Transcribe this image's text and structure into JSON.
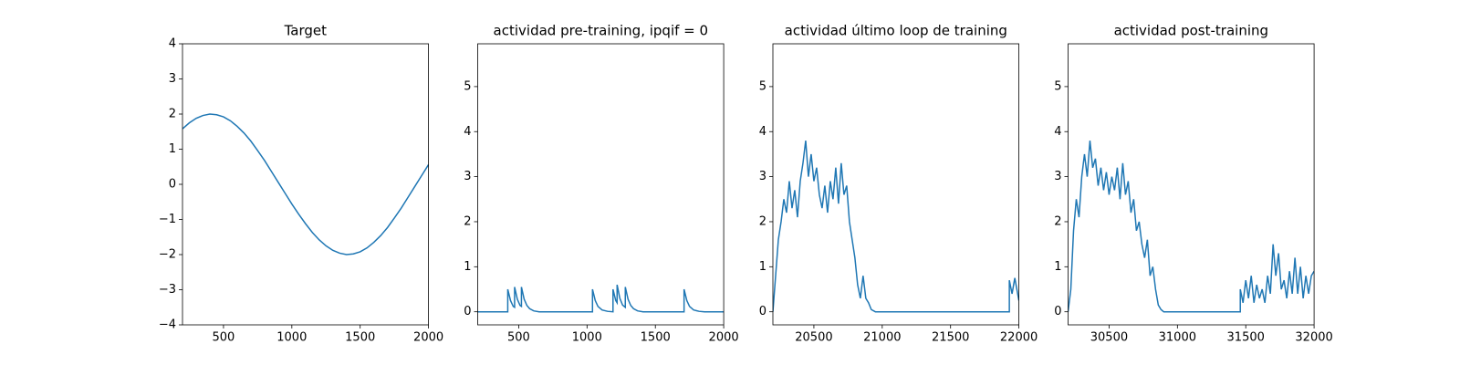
{
  "chart_data": [
    {
      "type": "line",
      "title": "Target",
      "color": "#1f77b4",
      "x": [
        200,
        250,
        300,
        350,
        400,
        450,
        500,
        550,
        600,
        650,
        700,
        750,
        800,
        850,
        900,
        950,
        1000,
        1050,
        1100,
        1150,
        1200,
        1250,
        1300,
        1350,
        1400,
        1450,
        1500,
        1550,
        1600,
        1650,
        1700,
        1750,
        1800,
        1850,
        1900,
        1950,
        2000
      ],
      "values": [
        1.58,
        1.75,
        1.88,
        1.96,
        2.0,
        1.98,
        1.92,
        1.81,
        1.65,
        1.46,
        1.23,
        0.96,
        0.68,
        0.37,
        0.06,
        -0.25,
        -0.56,
        -0.85,
        -1.12,
        -1.37,
        -1.58,
        -1.75,
        -1.88,
        -1.96,
        -2.0,
        -1.98,
        -1.92,
        -1.81,
        -1.65,
        -1.46,
        -1.23,
        -0.96,
        -0.68,
        -0.37,
        -0.06,
        0.25,
        0.56
      ],
      "xlim": [
        200,
        2000
      ],
      "xticks": [
        500,
        1000,
        1500,
        2000
      ],
      "ylim": [
        -4,
        4
      ],
      "yticks": [
        {
          "value": -4,
          "label": "−4"
        },
        {
          "value": -3,
          "label": "−3"
        },
        {
          "value": -2,
          "label": "−2"
        },
        {
          "value": -1,
          "label": "−1"
        },
        0,
        1,
        2,
        3,
        4
      ]
    },
    {
      "type": "line",
      "title": "actividad pre-training, ipqif = 0",
      "color": "#1f77b4",
      "x": [
        200,
        420,
        420,
        440,
        460,
        470,
        470,
        490,
        510,
        520,
        520,
        540,
        560,
        580,
        610,
        650,
        1040,
        1040,
        1060,
        1080,
        1110,
        1150,
        1190,
        1190,
        1210,
        1220,
        1220,
        1240,
        1260,
        1280,
        1280,
        1300,
        1320,
        1340,
        1370,
        1410,
        1710,
        1710,
        1730,
        1750,
        1780,
        1820,
        1860,
        2000
      ],
      "values": [
        0,
        0,
        0.5,
        0.25,
        0.12,
        0.1,
        0.55,
        0.28,
        0.14,
        0.12,
        0.55,
        0.28,
        0.14,
        0.07,
        0.02,
        0,
        0,
        0.5,
        0.25,
        0.12,
        0.04,
        0.01,
        0,
        0.5,
        0.25,
        0.2,
        0.6,
        0.3,
        0.15,
        0.1,
        0.55,
        0.28,
        0.14,
        0.07,
        0.02,
        0,
        0,
        0.5,
        0.25,
        0.12,
        0.04,
        0.01,
        0,
        0
      ],
      "xlim": [
        200,
        2000
      ],
      "xticks": [
        500,
        1000,
        1500,
        2000
      ],
      "ylim": [
        -0.29,
        5.95
      ],
      "yticks": [
        0,
        1,
        2,
        3,
        4,
        5
      ]
    },
    {
      "type": "line",
      "title": "actividad último loop de training",
      "color": "#1f77b4",
      "x": [
        20200,
        20220,
        20240,
        20260,
        20280,
        20300,
        20320,
        20340,
        20360,
        20380,
        20400,
        20420,
        20440,
        20460,
        20480,
        20500,
        20520,
        20540,
        20560,
        20580,
        20600,
        20620,
        20640,
        20660,
        20680,
        20700,
        20720,
        20740,
        20760,
        20780,
        20800,
        20820,
        20840,
        20860,
        20880,
        20900,
        20920,
        20950,
        21900,
        21930,
        21930,
        21950,
        21970,
        22000
      ],
      "values": [
        0,
        0.8,
        1.6,
        2.0,
        2.5,
        2.2,
        2.9,
        2.3,
        2.7,
        2.1,
        2.9,
        3.3,
        3.8,
        3.0,
        3.5,
        2.9,
        3.2,
        2.6,
        2.3,
        2.8,
        2.2,
        2.9,
        2.5,
        3.2,
        2.4,
        3.3,
        2.6,
        2.8,
        2.0,
        1.6,
        1.2,
        0.6,
        0.3,
        0.8,
        0.3,
        0.2,
        0.05,
        0,
        0,
        0,
        0.7,
        0.4,
        0.75,
        0.25
      ],
      "xlim": [
        20200,
        22000
      ],
      "xticks": [
        20500,
        21000,
        21500,
        22000
      ],
      "ylim": [
        -0.29,
        5.95
      ],
      "yticks": [
        0,
        1,
        2,
        3,
        4,
        5
      ]
    },
    {
      "type": "line",
      "title": "actividad post-training",
      "color": "#1f77b4",
      "x": [
        30200,
        30220,
        30240,
        30260,
        30280,
        30300,
        30320,
        30340,
        30360,
        30380,
        30400,
        30420,
        30440,
        30460,
        30480,
        30500,
        30520,
        30540,
        30560,
        30580,
        30600,
        30620,
        30640,
        30660,
        30680,
        30700,
        30720,
        30740,
        30760,
        30780,
        30800,
        30820,
        30840,
        30860,
        30880,
        30900,
        31460,
        31460,
        31480,
        31500,
        31520,
        31540,
        31560,
        31580,
        31600,
        31620,
        31640,
        31660,
        31680,
        31700,
        31720,
        31740,
        31760,
        31780,
        31800,
        31820,
        31840,
        31860,
        31880,
        31900,
        31920,
        31940,
        31960,
        31980,
        32000
      ],
      "values": [
        0,
        0.5,
        1.8,
        2.5,
        2.1,
        3.0,
        3.5,
        3.0,
        3.8,
        3.2,
        3.4,
        2.8,
        3.2,
        2.7,
        3.1,
        2.6,
        3.0,
        2.7,
        3.2,
        2.5,
        3.3,
        2.6,
        2.9,
        2.2,
        2.5,
        1.8,
        2.0,
        1.5,
        1.2,
        1.6,
        0.8,
        1.0,
        0.5,
        0.15,
        0.05,
        0,
        0,
        0.5,
        0.2,
        0.7,
        0.3,
        0.8,
        0.2,
        0.6,
        0.3,
        0.5,
        0.2,
        0.8,
        0.4,
        1.5,
        0.8,
        1.3,
        0.5,
        0.7,
        0.3,
        0.9,
        0.4,
        1.2,
        0.4,
        1.0,
        0.3,
        0.8,
        0.4,
        0.8,
        0.9
      ],
      "xlim": [
        30200,
        32000
      ],
      "xticks": [
        30500,
        31000,
        31500,
        32000
      ],
      "ylim": [
        -0.29,
        5.95
      ],
      "yticks": [
        0,
        1,
        2,
        3,
        4,
        5
      ]
    }
  ]
}
